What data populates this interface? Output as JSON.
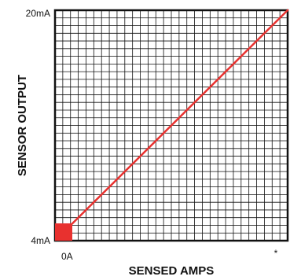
{
  "chart_data": {
    "type": "line",
    "xlabel": "SENSED AMPS",
    "ylabel": "SENSOR OUTPUT",
    "x_tick_labels": {
      "min": "0A",
      "max": "*"
    },
    "y_tick_labels": {
      "min": "4mA",
      "max": "20mA"
    },
    "xlim": [
      0,
      1
    ],
    "ylim": [
      4,
      20
    ],
    "grid": true,
    "series": [
      {
        "x": [
          0.05,
          1.0
        ],
        "y": [
          4.8,
          20
        ],
        "color": "#e8312f"
      }
    ],
    "annotations": [
      {
        "type": "marker-square",
        "x": 0,
        "y": 4,
        "color": "#e8312f"
      }
    ]
  }
}
